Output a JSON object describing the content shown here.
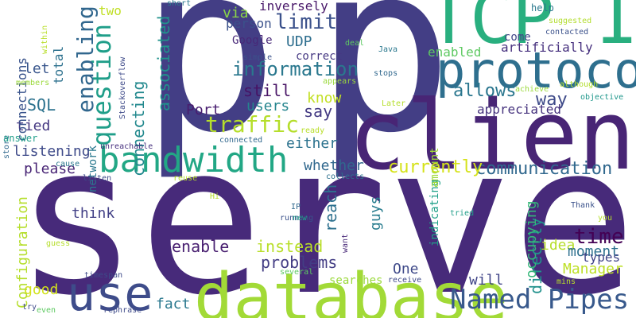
{
  "words": [
    {
      "text": "p",
      "color": "#433e85"
    },
    {
      "text": "p",
      "color": "#433e85"
    },
    {
      "text": "server",
      "color": "#472a7a"
    },
    {
      "text": "client",
      "color": "#482575"
    },
    {
      "text": "database",
      "color": "#a2da37"
    },
    {
      "text": "TCP IP",
      "color": "#29af7f"
    },
    {
      "text": "protocol",
      "color": "#2e6f8e"
    },
    {
      "text": "bandwidth",
      "color": "#22a785"
    },
    {
      "text": "use",
      "color": "#3e4c8a"
    },
    {
      "text": "Named Pipes",
      "color": "#38598c"
    },
    {
      "text": "traffic",
      "color": "#b5de2b"
    },
    {
      "text": "question",
      "color": "#1f9e89"
    },
    {
      "text": "communication",
      "color": "#31688e"
    },
    {
      "text": "limit",
      "color": "#3b518b"
    },
    {
      "text": "information",
      "color": "#2a788e"
    },
    {
      "text": "enabling",
      "color": "#31678e"
    },
    {
      "text": "connecting",
      "color": "#23898e"
    },
    {
      "text": "associated",
      "color": "#20928c"
    },
    {
      "text": "time",
      "color": "#440154"
    },
    {
      "text": "currently",
      "color": "#d5e21a"
    },
    {
      "text": "way",
      "color": "#3e4a89"
    },
    {
      "text": "SQL",
      "color": "#2c728e"
    },
    {
      "text": "allows",
      "color": "#2a768e"
    },
    {
      "text": "enabled",
      "color": "#5ec962"
    },
    {
      "text": "still",
      "color": "#471365"
    },
    {
      "text": "users",
      "color": "#25858e"
    },
    {
      "text": "say",
      "color": "#443a83"
    },
    {
      "text": "know",
      "color": "#c2df23"
    },
    {
      "text": "either",
      "color": "#2c728e"
    },
    {
      "text": "Port",
      "color": "#481d6f"
    },
    {
      "text": "let",
      "color": "#39568c"
    },
    {
      "text": "tied",
      "color": "#453882"
    },
    {
      "text": "connections",
      "color": "#3a548c"
    },
    {
      "text": "total",
      "color": "#2d718e"
    },
    {
      "text": "network",
      "color": "#2a788e"
    },
    {
      "text": "listening",
      "color": "#3e4a89"
    },
    {
      "text": "please",
      "color": "#482475"
    },
    {
      "text": "think",
      "color": "#424086"
    },
    {
      "text": "enable",
      "color": "#481f70"
    },
    {
      "text": "instead",
      "color": "#b8de29"
    },
    {
      "text": "problems",
      "color": "#433d84"
    },
    {
      "text": "reach",
      "color": "#2d708e"
    },
    {
      "text": "whether",
      "color": "#31688e"
    },
    {
      "text": "guys",
      "color": "#287c8e"
    },
    {
      "text": "indicating",
      "color": "#1fa088"
    },
    {
      "text": "directly",
      "color": "#21918c"
    },
    {
      "text": "occupying",
      "color": "#35b779"
    },
    {
      "text": "idea",
      "color": "#b5de2b"
    },
    {
      "text": "moment",
      "color": "#2d708e"
    },
    {
      "text": "types",
      "color": "#414487"
    },
    {
      "text": "Manager",
      "color": "#bddf26"
    },
    {
      "text": "One",
      "color": "#3e4989"
    },
    {
      "text": "will",
      "color": "#404588"
    },
    {
      "text": "searches",
      "color": "#9bd93c"
    },
    {
      "text": "fact",
      "color": "#2a788e"
    },
    {
      "text": "good",
      "color": "#d2e21b"
    },
    {
      "text": "Configuration",
      "color": "#b5de2b"
    },
    {
      "text": "amount",
      "color": "#9fda3a"
    },
    {
      "text": "appreciated",
      "color": "#46337e"
    },
    {
      "text": "two",
      "color": "#c0df25"
    },
    {
      "text": "via",
      "color": "#8bd646"
    },
    {
      "text": "inversely",
      "color": "#481769"
    },
    {
      "text": "person",
      "color": "#3b528b"
    },
    {
      "text": "Google",
      "color": "#482878"
    },
    {
      "text": "UDP",
      "color": "#2e6e8e"
    },
    {
      "text": "correct",
      "color": "#453882"
    },
    {
      "text": "artificially",
      "color": "#46307e"
    },
    {
      "text": "come",
      "color": "#404588"
    },
    {
      "text": "help",
      "color": "#2a788e"
    },
    {
      "text": "suggested",
      "color": "#b2dd2d"
    },
    {
      "text": "contacted",
      "color": "#3b518b"
    },
    {
      "text": "although",
      "color": "#b2dd2d"
    },
    {
      "text": "achieve",
      "color": "#9bd93c"
    },
    {
      "text": "objective",
      "color": "#1f978b"
    },
    {
      "text": "stops",
      "color": "#31688e"
    },
    {
      "text": "Java",
      "color": "#2a788e"
    },
    {
      "text": "deal",
      "color": "#5ec962"
    },
    {
      "text": "simple",
      "color": "#3b528b"
    },
    {
      "text": "appears",
      "color": "#9bd93c"
    },
    {
      "text": "Later",
      "color": "#b5de2b"
    },
    {
      "text": "Stackoverflow",
      "color": "#3e4a89"
    },
    {
      "text": "short",
      "color": "#2a788e"
    },
    {
      "text": "within",
      "color": "#b8de29"
    },
    {
      "text": "members",
      "color": "#9bd93c"
    },
    {
      "text": "store",
      "color": "#31688e"
    },
    {
      "text": "answer",
      "color": "#1f9e89"
    },
    {
      "text": "unreachable",
      "color": "#46307e"
    },
    {
      "text": "cause",
      "color": "#2a788e"
    },
    {
      "text": "listen",
      "color": "#3e4a89"
    },
    {
      "text": "reuse",
      "color": "#b5de2b"
    },
    {
      "text": "collects",
      "color": "#2d708e"
    },
    {
      "text": "ready",
      "color": "#b8de29"
    },
    {
      "text": "connected",
      "color": "#31688e"
    },
    {
      "text": "running",
      "color": "#3b528b"
    },
    {
      "text": "IP",
      "color": "#31688e"
    },
    {
      "text": "new",
      "color": "#1f9e89"
    },
    {
      "text": "want",
      "color": "#482878"
    },
    {
      "text": "tried",
      "color": "#1f9e89"
    },
    {
      "text": "Thank",
      "color": "#3b528b"
    },
    {
      "text": "you",
      "color": "#b5de2b"
    },
    {
      "text": "Hi",
      "color": "#b5de2b"
    },
    {
      "text": "guess",
      "color": "#b5de2b"
    },
    {
      "text": "timespan",
      "color": "#3e4a89"
    },
    {
      "text": "several",
      "color": "#5ec962"
    },
    {
      "text": "receive",
      "color": "#3e4a89"
    },
    {
      "text": "mins",
      "color": "#b8de29"
    },
    {
      "text": "try",
      "color": "#3e4a89"
    },
    {
      "text": "even",
      "color": "#5ec962"
    },
    {
      "text": "rephrase",
      "color": "#3e4a89"
    }
  ]
}
